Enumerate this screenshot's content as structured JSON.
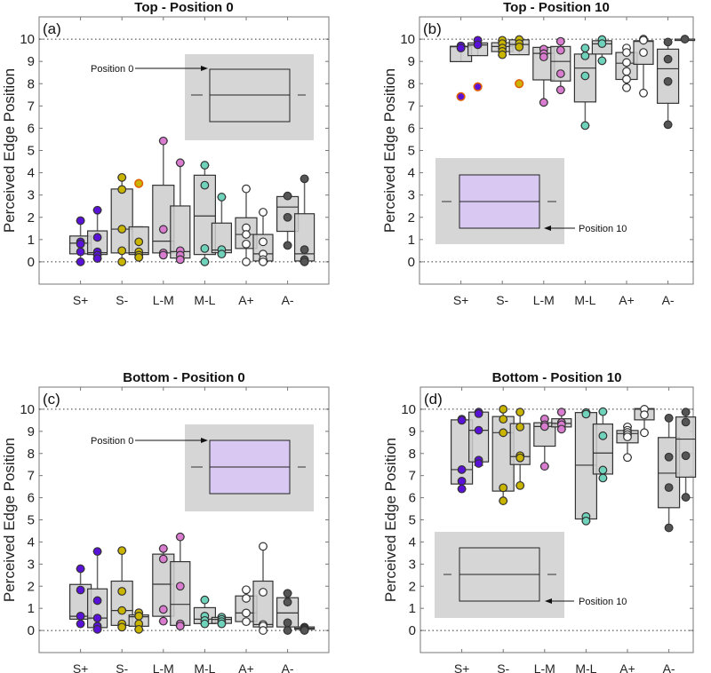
{
  "colors": {
    "S+": "#5a12d8",
    "S-": "#c9b400",
    "L-M": "#d97ccf",
    "M-L": "#6fd3bc",
    "A+": "#ffffff",
    "A-": "#555555",
    "outlier_edge": "#e06000",
    "box_fill": "#cdcdcd",
    "inset_bg": "#d6d6d6",
    "inset_purple": "#d9c9f2"
  },
  "chart_data": [
    {
      "type": "box",
      "title": "Top - Position 0",
      "panel_label": "(a)",
      "ylabel": "Perceived Edge Position",
      "categories": [
        "S+",
        "S-",
        "L-M",
        "M-L",
        "A+",
        "A-"
      ],
      "ylim": [
        -1,
        11
      ],
      "yticks": [
        0,
        1,
        2,
        3,
        4,
        5,
        6,
        7,
        8,
        9,
        10
      ],
      "reference_lines": [
        0,
        10
      ],
      "inset": {
        "label": "Position 0",
        "highlighted": false
      },
      "box_format": [
        "whisker_low",
        "q1",
        "median",
        "q3",
        "whisker_high"
      ],
      "groups": [
        [
          {
            "box": [
              0,
              0.36,
              0.84,
              1.16,
              1.85
            ],
            "points": [
              1.85,
              0.9,
              0.8,
              0.45,
              0
            ],
            "outliers": []
          },
          {
            "box": [
              0.15,
              0.33,
              0.41,
              1.39,
              2.32
            ],
            "points": [
              2.32,
              1.1,
              0.45,
              0.3,
              0.15
            ],
            "outliers": []
          }
        ],
        [
          {
            "box": [
              0,
              0.4,
              1.47,
              3.27,
              3.79
            ],
            "points": [
              3.79,
              3.25,
              1.47,
              0.5,
              0
            ],
            "outliers": []
          },
          {
            "box": [
              0.2,
              0.33,
              0.41,
              1.57,
              1.57
            ],
            "points": [
              0.9,
              0.45,
              0.3,
              0.2
            ],
            "outliers": [
              3.52
            ]
          }
        ],
        [
          {
            "box": [
              0.3,
              0.4,
              0.93,
              3.44,
              5.43
            ],
            "points": [
              5.43,
              1.46,
              0.4,
              0.3
            ],
            "outliers": []
          },
          {
            "box": [
              0.1,
              0.17,
              0.46,
              2.51,
              4.45
            ],
            "points": [
              4.45,
              0.5,
              0.3,
              0.1
            ],
            "outliers": []
          }
        ],
        [
          {
            "box": [
              0,
              0.33,
              2.06,
              3.89,
              4.34
            ],
            "points": [
              4.34,
              3.44,
              0.6,
              0
            ],
            "outliers": []
          },
          {
            "box": [
              0.35,
              0.41,
              0.53,
              1.74,
              2.91
            ],
            "points": [
              2.91,
              0.55,
              0.35
            ],
            "outliers": []
          }
        ],
        [
          {
            "box": [
              0,
              0.6,
              1.23,
              1.98,
              3.28
            ],
            "points": [
              3.28,
              1.53,
              1.23,
              0.8,
              0
            ],
            "outliers": []
          },
          {
            "box": [
              0,
              0.04,
              0.36,
              1.23,
              2.23
            ],
            "points": [
              2.23,
              0.9,
              0.35,
              0.1,
              0
            ],
            "outliers": []
          }
        ],
        [
          {
            "box": [
              0.74,
              1.37,
              2.46,
              2.93,
              2.96
            ],
            "points": [
              2.96,
              2.0,
              0.74
            ],
            "outliers": []
          },
          {
            "box": [
              0,
              0.04,
              0.36,
              2.16,
              3.73
            ],
            "points": [
              3.73,
              0.55,
              0.1,
              0
            ],
            "outliers": []
          }
        ]
      ]
    },
    {
      "type": "box",
      "title": "Top - Position 10",
      "panel_label": "(b)",
      "ylabel": "Perceived Edge Position",
      "categories": [
        "S+",
        "S-",
        "L-M",
        "M-L",
        "A+",
        "A-"
      ],
      "ylim": [
        -1,
        11
      ],
      "yticks": [
        0,
        1,
        2,
        3,
        4,
        5,
        6,
        7,
        8,
        9,
        10
      ],
      "reference_lines": [
        0,
        10
      ],
      "inset": {
        "label": "Position 10",
        "highlighted": true
      },
      "box_format": [
        "whisker_low",
        "q1",
        "median",
        "q3",
        "whisker_high"
      ],
      "groups": [
        [
          {
            "box": [
              9.6,
              8.99,
              9.66,
              9.68,
              9.7
            ],
            "points": [
              9.7,
              9.6
            ],
            "outliers": [
              7.42
            ]
          },
          {
            "box": [
              9.75,
              9.26,
              9.74,
              9.83,
              9.95
            ],
            "points": [
              9.95,
              9.75
            ],
            "outliers": [
              7.86
            ]
          }
        ],
        [
          {
            "box": [
              9.28,
              9.44,
              9.67,
              9.84,
              9.95
            ],
            "points": [
              9.95,
              9.8,
              9.6,
              9.45,
              9.3
            ],
            "outliers": []
          },
          {
            "box": [
              9.65,
              9.3,
              9.76,
              9.97,
              9.98
            ],
            "points": [
              9.98,
              9.8,
              9.65
            ],
            "outliers": [
              8.0
            ]
          }
        ],
        [
          {
            "box": [
              7.16,
              8.17,
              9.36,
              9.63,
              9.63
            ],
            "points": [
              9.55,
              9.35,
              9.2,
              7.16
            ],
            "outliers": []
          },
          {
            "box": [
              7.72,
              8.12,
              9.0,
              9.67,
              9.9
            ],
            "points": [
              9.9,
              9.5,
              8.45,
              7.72
            ],
            "outliers": []
          }
        ],
        [
          {
            "box": [
              6.12,
              7.18,
              8.7,
              9.33,
              9.6
            ],
            "points": [
              9.6,
              9.25,
              8.35,
              6.12
            ],
            "outliers": []
          },
          {
            "box": [
              9.03,
              9.33,
              9.79,
              9.93,
              9.98
            ],
            "points": [
              9.98,
              9.8,
              9.03
            ],
            "outliers": []
          }
        ],
        [
          {
            "box": [
              7.82,
              8.19,
              8.92,
              9.4,
              9.6
            ],
            "points": [
              9.6,
              9.4,
              8.95,
              8.55,
              8.2,
              7.82
            ],
            "outliers": []
          },
          {
            "box": [
              7.58,
              8.87,
              9.9,
              9.93,
              10
            ],
            "points": [
              10,
              9.95,
              9.4,
              7.58
            ],
            "outliers": []
          }
        ],
        [
          {
            "box": [
              6.16,
              7.12,
              8.67,
              9.55,
              9.87
            ],
            "points": [
              9.87,
              9.1,
              8.1,
              6.16
            ],
            "outliers": []
          },
          {
            "box": [
              10,
              9.98,
              10,
              10,
              10
            ],
            "points": [
              10
            ],
            "outliers": []
          }
        ]
      ]
    },
    {
      "type": "box",
      "title": "Bottom - Position 0",
      "panel_label": "(c)",
      "ylabel": "Perceived Edge Position",
      "categories": [
        "S+",
        "S-",
        "L-M",
        "M-L",
        "A+",
        "A-"
      ],
      "ylim": [
        -1,
        11
      ],
      "yticks": [
        0,
        1,
        2,
        3,
        4,
        5,
        6,
        7,
        8,
        9,
        10
      ],
      "reference_lines": [
        0,
        10
      ],
      "inset": {
        "label": "Position 0",
        "highlighted": true
      },
      "box_format": [
        "whisker_low",
        "q1",
        "median",
        "q3",
        "whisker_high"
      ],
      "groups": [
        [
          {
            "box": [
              0.3,
              0.51,
              0.64,
              2.08,
              2.79
            ],
            "points": [
              2.79,
              1.83,
              0.65,
              0.3
            ],
            "outliers": []
          },
          {
            "box": [
              0.05,
              0.13,
              0.56,
              1.88,
              3.57
            ],
            "points": [
              3.57,
              1.35,
              0.56,
              0.2,
              0.05
            ],
            "outliers": []
          }
        ],
        [
          {
            "box": [
              0.15,
              0.23,
              0.9,
              2.23,
              3.61
            ],
            "points": [
              3.61,
              1.77,
              0.9,
              0.3,
              0.15
            ],
            "outliers": []
          },
          {
            "box": [
              0.05,
              0.19,
              0.62,
              0.7,
              0.8
            ],
            "points": [
              0.8,
              0.65,
              0.3,
              0.05
            ],
            "outliers": []
          }
        ],
        [
          {
            "box": [
              0.42,
              0.64,
              2.09,
              3.45,
              3.7
            ],
            "points": [
              3.7,
              3.23,
              0.95,
              0.42
            ],
            "outliers": []
          },
          {
            "box": [
              0.2,
              0.23,
              1.18,
              3.11,
              4.23
            ],
            "points": [
              4.23,
              2.0,
              0.3,
              0.2
            ],
            "outliers": []
          }
        ],
        [
          {
            "box": [
              0.3,
              0.31,
              0.51,
              1.03,
              1.38
            ],
            "points": [
              1.38,
              0.65,
              0.45,
              0.3
            ],
            "outliers": []
          },
          {
            "box": [
              0.3,
              0.32,
              0.5,
              0.59,
              0.6
            ],
            "points": [
              0.6,
              0.5,
              0.4,
              0.3
            ],
            "outliers": []
          }
        ],
        [
          {
            "box": [
              0.4,
              0.4,
              0.79,
              1.56,
              1.84
            ],
            "points": [
              1.84,
              1.45,
              0.79,
              0.4
            ],
            "outliers": []
          },
          {
            "box": [
              0,
              0.16,
              0.27,
              2.23,
              3.8
            ],
            "points": [
              3.8,
              1.73,
              0.27,
              0.2,
              0
            ],
            "outliers": []
          }
        ],
        [
          {
            "box": [
              0,
              0.16,
              0.79,
              1.48,
              1.68
            ],
            "points": [
              1.68,
              1.28,
              0.35,
              0
            ],
            "outliers": []
          },
          {
            "box": [
              0,
              0.05,
              0.1,
              0.16,
              0.16
            ],
            "points": [
              0.15,
              0.1,
              0.05,
              0
            ],
            "outliers": []
          }
        ]
      ]
    },
    {
      "type": "box",
      "title": "Bottom - Position 10",
      "panel_label": "(d)",
      "ylabel": "Perceived Edge Position",
      "categories": [
        "S+",
        "S-",
        "L-M",
        "M-L",
        "A+",
        "A-"
      ],
      "ylim": [
        -1,
        11
      ],
      "yticks": [
        0,
        1,
        2,
        3,
        4,
        5,
        6,
        7,
        8,
        9,
        10
      ],
      "reference_lines": [
        0,
        10
      ],
      "inset": {
        "label": "Position 10",
        "highlighted": false
      },
      "box_format": [
        "whisker_low",
        "q1",
        "median",
        "q3",
        "whisker_high"
      ],
      "groups": [
        [
          {
            "box": [
              6.4,
              6.62,
              7.27,
              9.52,
              9.55
            ],
            "points": [
              9.55,
              9.5,
              7.27,
              6.75,
              6.4
            ],
            "outliers": []
          },
          {
            "box": [
              7.46,
              7.62,
              9.05,
              9.87,
              9.87
            ],
            "points": [
              9.87,
              9.8,
              9.05,
              7.7,
              7.55
            ],
            "outliers": []
          }
        ],
        [
          {
            "box": [
              5.86,
              6.3,
              8.94,
              9.67,
              10.0
            ],
            "points": [
              10.0,
              9.55,
              8.94,
              6.45,
              5.86
            ],
            "outliers": []
          },
          {
            "box": [
              6.55,
              7.5,
              7.86,
              9.35,
              9.87
            ],
            "points": [
              9.87,
              9.2,
              7.9,
              7.8,
              6.55
            ],
            "outliers": []
          }
        ],
        [
          {
            "box": [
              7.42,
              8.33,
              9.22,
              9.39,
              9.56
            ],
            "points": [
              9.56,
              9.3,
              9.22,
              7.42
            ],
            "outliers": []
          },
          {
            "box": [
              9.1,
              9.2,
              9.36,
              9.57,
              9.87
            ],
            "points": [
              9.87,
              9.4,
              9.3,
              9.1
            ],
            "outliers": []
          }
        ],
        [
          {
            "box": [
              4.93,
              5.04,
              7.47,
              9.85,
              9.89
            ],
            "points": [
              9.85,
              9.78,
              5.15,
              4.95
            ],
            "outliers": []
          },
          {
            "box": [
              6.89,
              7.07,
              8.02,
              9.33,
              9.89
            ],
            "points": [
              9.89,
              8.8,
              7.25,
              6.89
            ],
            "outliers": []
          }
        ],
        [
          {
            "box": [
              7.82,
              8.48,
              8.9,
              9.04,
              9.22
            ],
            "points": [
              9.2,
              9.05,
              8.95,
              8.85,
              8.75,
              7.82
            ],
            "outliers": []
          },
          {
            "box": [
              8.94,
              9.52,
              10.0,
              10.03,
              10.03
            ],
            "points": [
              10,
              9.75,
              8.94
            ],
            "outliers": []
          }
        ],
        [
          {
            "box": [
              4.64,
              5.55,
              7.11,
              8.72,
              9.6
            ],
            "points": [
              9.6,
              7.84,
              6.46,
              4.64
            ],
            "outliers": []
          },
          {
            "box": [
              6.02,
              6.93,
              8.65,
              9.65,
              9.87
            ],
            "points": [
              9.87,
              9.42,
              7.9,
              6.02
            ],
            "outliers": []
          }
        ]
      ]
    }
  ]
}
